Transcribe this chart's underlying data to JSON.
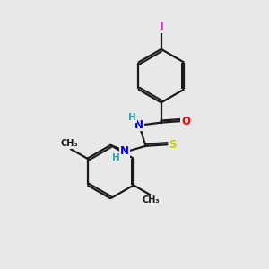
{
  "bg_color": "#e8e8e8",
  "bond_color": "#1a1a1a",
  "bond_width": 1.6,
  "atom_colors": {
    "I": "#dd22cc",
    "O": "#ff0000",
    "N": "#0000ee",
    "S": "#cccc00",
    "C": "#1a1a1a",
    "H": "#22aaaa"
  },
  "font_size_atom": 8.5,
  "font_size_methyl": 7.0,
  "font_size_H": 7.5
}
